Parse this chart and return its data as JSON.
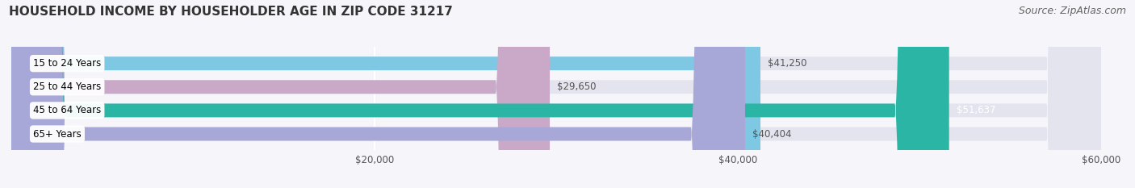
{
  "title": "HOUSEHOLD INCOME BY HOUSEHOLDER AGE IN ZIP CODE 31217",
  "source": "Source: ZipAtlas.com",
  "categories": [
    "15 to 24 Years",
    "25 to 44 Years",
    "45 to 64 Years",
    "65+ Years"
  ],
  "values": [
    41250,
    29650,
    51637,
    40404
  ],
  "bar_colors": [
    "#7ec8e3",
    "#c9a8c8",
    "#2ab5a5",
    "#a8a8d8"
  ],
  "bar_bg_color": "#e4e4ee",
  "label_colors": [
    "#555555",
    "#555555",
    "#ffffff",
    "#555555"
  ],
  "xlim": [
    0,
    60000
  ],
  "xticks": [
    20000,
    40000,
    60000
  ],
  "xtick_labels": [
    "$20,000",
    "$40,000",
    "$60,000"
  ],
  "background_color": "#f5f5fa",
  "title_fontsize": 11,
  "source_fontsize": 9,
  "bar_height": 0.58,
  "figsize": [
    14.06,
    2.33
  ],
  "dpi": 100
}
